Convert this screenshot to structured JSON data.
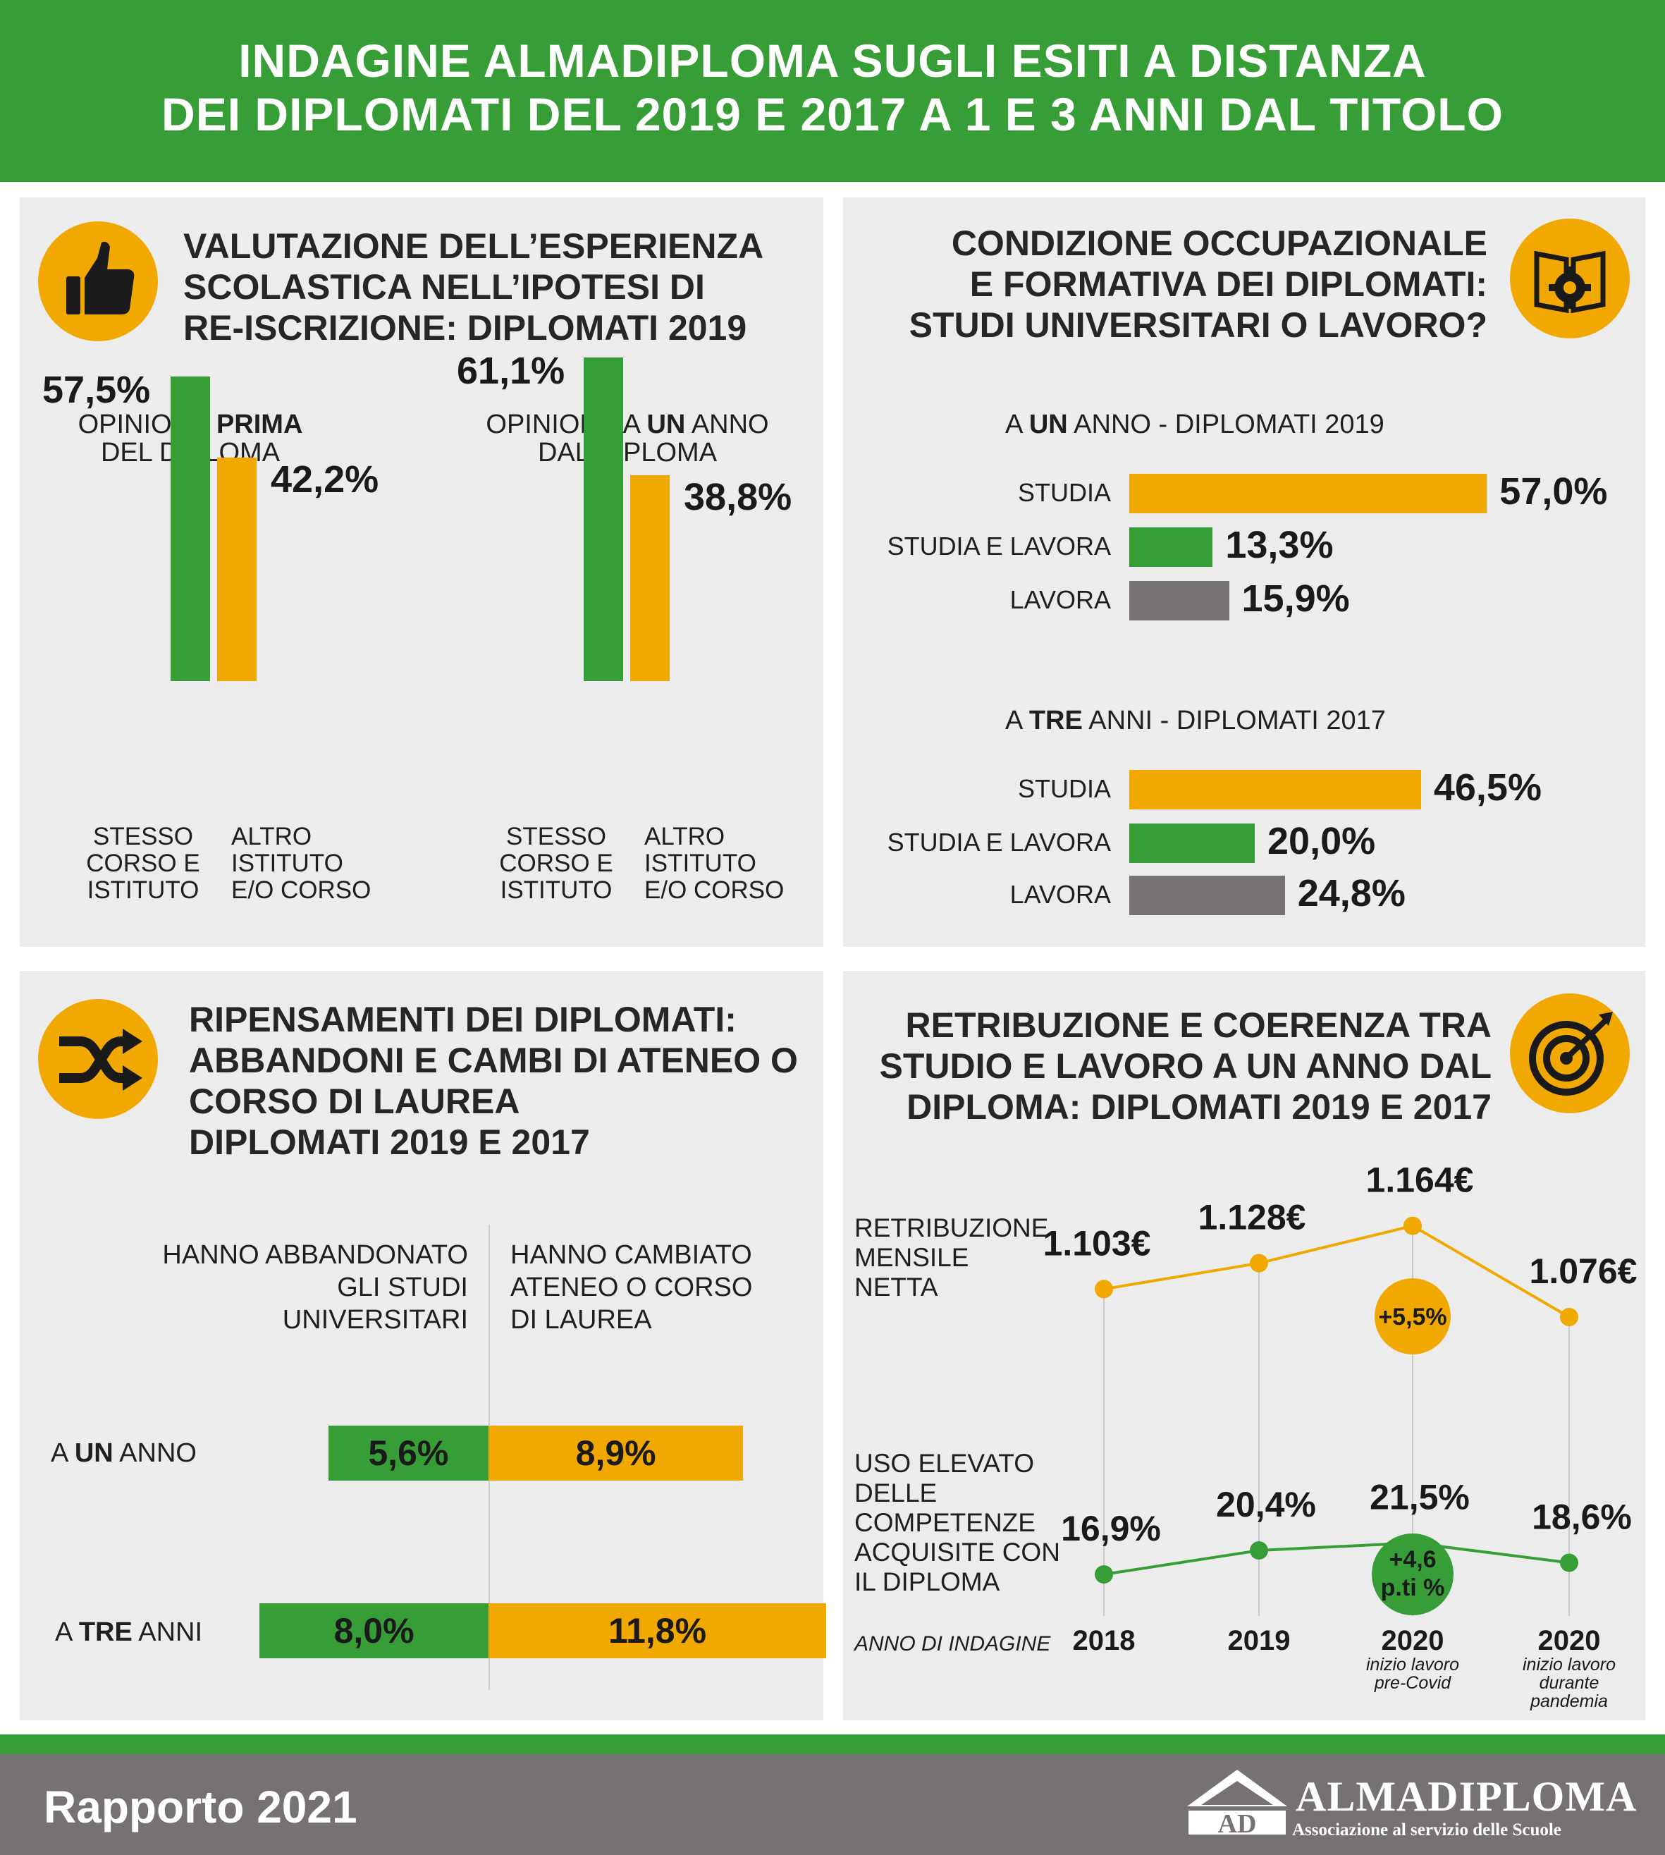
{
  "header": {
    "line1": "INDAGINE ALMADIPLOMA SUGLI ESITI A DISTANZA",
    "line2": "DEI DIPLOMATI DEL 2019 E 2017 A 1 E 3 ANNI DAL TITOLO"
  },
  "colors": {
    "green": "#379e37",
    "orange": "#f1a800",
    "grey": "#777272",
    "panel": "#ececec"
  },
  "panel1": {
    "icon": "thumbs-up-icon",
    "title": [
      "VALUTAZIONE DELL’ESPERIENZA",
      "SCOLASTICA NELL’IPOTESI DI",
      "RE-ISCRIZIONE: DIPLOMATI 2019"
    ],
    "group1_title": {
      "pre": "OPINIONE ",
      "bold": "PRIMA",
      "line2": "DEL DIPLOMA"
    },
    "group2_title": {
      "pre": "OPINIONE A ",
      "bold": "UN",
      "post": " ANNO",
      "line2": "DAL DIPLOMA"
    },
    "cat_same": [
      "STESSO",
      "CORSO E",
      "ISTITUTO"
    ],
    "cat_other": [
      "ALTRO",
      "ISTITUTO",
      "E/O CORSO"
    ]
  },
  "panel2": {
    "icon": "book-gear-icon",
    "title": [
      "CONDIZIONE OCCUPAZIONALE",
      "E FORMATIVA DEI DIPLOMATI:",
      "STUDI UNIVERSITARI O LAVORO?"
    ],
    "section1": {
      "pre": "A ",
      "bold": "UN",
      "post": " ANNO - DIPLOMATI 2019"
    },
    "section2": {
      "pre": "A ",
      "bold": "TRE",
      "post": " ANNI - DIPLOMATI 2017"
    }
  },
  "panel3": {
    "icon": "shuffle-arrows-icon",
    "title": [
      "RIPENSAMENTI DEI DIPLOMATI:",
      "ABBANDONI E CAMBI DI ATENEO O",
      "CORSO DI LAUREA",
      "DIPLOMATI 2019 E 2017"
    ],
    "col_left": [
      "HANNO ABBANDONATO",
      "GLI STUDI",
      "UNIVERSITARI"
    ],
    "col_right": [
      "HANNO CAMBIATO",
      "ATENEO O CORSO",
      "DI LAUREA"
    ],
    "row1": {
      "pre": "A ",
      "bold": "UN",
      "post": " ANNO"
    },
    "row2": {
      "pre": "A ",
      "bold": "TRE",
      "post": " ANNI"
    }
  },
  "panel4": {
    "icon": "target-arrow-icon",
    "title": [
      "RETRIBUZIONE E COERENZA TRA",
      "STUDIO E LAVORO A UN ANNO DAL",
      "DIPLOMA: DIPLOMATI 2019 E 2017"
    ],
    "label_salary": [
      "RETRIBUZIONE",
      "MENSILE",
      "NETTA"
    ],
    "label_skills": [
      "USO ELEVATO",
      "DELLE",
      "COMPETENZE",
      "ACQUISITE CON",
      "IL DIPLOMA"
    ],
    "year_axis_label": "ANNO DI INDAGINE",
    "salary_badge": "+5,5%",
    "skills_badge": [
      "+4,6",
      "p.ti %"
    ]
  },
  "chart_data": [
    {
      "type": "bar",
      "title": "OPINIONE PRIMA DEL DIPLOMA",
      "categories": [
        "STESSO CORSO E ISTITUTO",
        "ALTRO ISTITUTO E/O CORSO"
      ],
      "values": [
        57.5,
        42.2
      ],
      "value_labels": [
        "57,5%",
        "42,2%"
      ],
      "colors": [
        "#379e37",
        "#f1a800"
      ]
    },
    {
      "type": "bar",
      "title": "OPINIONE A UN ANNO DAL DIPLOMA",
      "categories": [
        "STESSO CORSO E ISTITUTO",
        "ALTRO ISTITUTO E/O CORSO"
      ],
      "values": [
        61.1,
        38.8
      ],
      "value_labels": [
        "61,1%",
        "38,8%"
      ],
      "colors": [
        "#379e37",
        "#f1a800"
      ]
    },
    {
      "type": "bar",
      "orientation": "horizontal",
      "title": "A UN ANNO - DIPLOMATI 2019",
      "categories": [
        "STUDIA",
        "STUDIA E LAVORA",
        "LAVORA"
      ],
      "values": [
        57.0,
        13.3,
        15.9
      ],
      "value_labels": [
        "57,0%",
        "13,3%",
        "15,9%"
      ],
      "colors": [
        "#f1a800",
        "#379e37",
        "#777272"
      ]
    },
    {
      "type": "bar",
      "orientation": "horizontal",
      "title": "A TRE ANNI - DIPLOMATI 2017",
      "categories": [
        "STUDIA",
        "STUDIA E LAVORA",
        "LAVORA"
      ],
      "values": [
        46.5,
        20.0,
        24.8
      ],
      "value_labels": [
        "46,5%",
        "20,0%",
        "24,8%"
      ],
      "colors": [
        "#f1a800",
        "#379e37",
        "#777272"
      ]
    },
    {
      "type": "bar",
      "orientation": "horizontal-diverging",
      "categories": [
        "A UN ANNO",
        "A TRE ANNI"
      ],
      "series": [
        {
          "name": "HANNO ABBANDONATO GLI STUDI UNIVERSITARI",
          "values": [
            5.6,
            8.0
          ],
          "value_labels": [
            "5,6%",
            "8,0%"
          ],
          "color": "#379e37"
        },
        {
          "name": "HANNO CAMBIATO ATENEO O CORSO DI LAUREA",
          "values": [
            8.9,
            11.8
          ],
          "value_labels": [
            "8,9%",
            "11,8%"
          ],
          "color": "#f1a800"
        }
      ]
    },
    {
      "type": "line",
      "x": [
        "2018",
        "2019",
        "2020",
        "2020"
      ],
      "x_sublabels": [
        "",
        "",
        "inizio lavoro pre-Covid",
        "inizio lavoro durante pandemia"
      ],
      "xlabel": "ANNO DI INDAGINE",
      "series": [
        {
          "name": "RETRIBUZIONE MENSILE NETTA",
          "values": [
            1103,
            1128,
            1164,
            1076
          ],
          "value_labels": [
            "1.103€",
            "1.128€",
            "1.164€",
            "1.076€"
          ],
          "color": "#f1a800"
        },
        {
          "name": "USO ELEVATO DELLE COMPETENZE ACQUISITE CON IL DIPLOMA",
          "values": [
            16.9,
            20.4,
            21.5,
            18.6
          ],
          "value_labels": [
            "16,9%",
            "20,4%",
            "21,5%",
            "18,6%"
          ],
          "color": "#379e37"
        }
      ]
    }
  ],
  "footer": {
    "report": "Rapporto 2021",
    "logo_mark": "AD",
    "logo_name": "ALMADIPLOMA",
    "logo_sub": "Associazione al servizio delle Scuole"
  }
}
